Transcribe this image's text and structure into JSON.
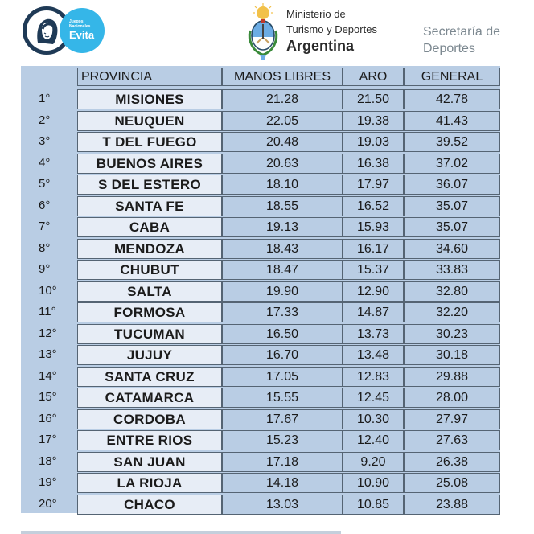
{
  "header": {
    "evita_small": "Juegos Nacionales",
    "evita_word": "Evita",
    "ministry_line1": "Ministerio de",
    "ministry_line2": "Turismo y Deportes",
    "ministry_line3": "Argentina",
    "secretaria_line1": "Secretaría de",
    "secretaria_line2": "Deportes"
  },
  "table": {
    "columns": [
      "PROVINCIA",
      "MANOS LIBRES",
      "ARO",
      "GENERAL"
    ],
    "rows": [
      {
        "rank": "1°",
        "provincia": "MISIONES",
        "manos_libres": "21.28",
        "aro": "21.50",
        "general": "42.78"
      },
      {
        "rank": "2°",
        "provincia": "NEUQUEN",
        "manos_libres": "22.05",
        "aro": "19.38",
        "general": "41.43"
      },
      {
        "rank": "3°",
        "provincia": "T DEL FUEGO",
        "manos_libres": "20.48",
        "aro": "19.03",
        "general": "39.52"
      },
      {
        "rank": "4°",
        "provincia": "BUENOS AIRES",
        "manos_libres": "20.63",
        "aro": "16.38",
        "general": "37.02"
      },
      {
        "rank": "5°",
        "provincia": "S DEL ESTERO",
        "manos_libres": "18.10",
        "aro": "17.97",
        "general": "36.07"
      },
      {
        "rank": "6°",
        "provincia": "SANTA FE",
        "manos_libres": "18.55",
        "aro": "16.52",
        "general": "35.07"
      },
      {
        "rank": "7°",
        "provincia": "CABA",
        "manos_libres": "19.13",
        "aro": "15.93",
        "general": "35.07"
      },
      {
        "rank": "8°",
        "provincia": "MENDOZA",
        "manos_libres": "18.43",
        "aro": "16.17",
        "general": "34.60"
      },
      {
        "rank": "9°",
        "provincia": "CHUBUT",
        "manos_libres": "18.47",
        "aro": "15.37",
        "general": "33.83"
      },
      {
        "rank": "10°",
        "provincia": "SALTA",
        "manos_libres": "19.90",
        "aro": "12.90",
        "general": "32.80"
      },
      {
        "rank": "11°",
        "provincia": "FORMOSA",
        "manos_libres": "17.33",
        "aro": "14.87",
        "general": "32.20"
      },
      {
        "rank": "12°",
        "provincia": "TUCUMAN",
        "manos_libres": "16.50",
        "aro": "13.73",
        "general": "30.23"
      },
      {
        "rank": "13°",
        "provincia": "JUJUY",
        "manos_libres": "16.70",
        "aro": "13.48",
        "general": "30.18"
      },
      {
        "rank": "14°",
        "provincia": "SANTA CRUZ",
        "manos_libres": "17.05",
        "aro": "12.83",
        "general": "29.88"
      },
      {
        "rank": "15°",
        "provincia": "CATAMARCA",
        "manos_libres": "15.55",
        "aro": "12.45",
        "general": "28.00"
      },
      {
        "rank": "16°",
        "provincia": "CORDOBA",
        "manos_libres": "17.67",
        "aro": "10.30",
        "general": "27.97"
      },
      {
        "rank": "17°",
        "provincia": "ENTRE RIOS",
        "manos_libres": "15.23",
        "aro": "12.40",
        "general": "27.63"
      },
      {
        "rank": "18°",
        "provincia": "SAN JUAN",
        "manos_libres": "17.18",
        "aro": "9.20",
        "general": "26.38"
      },
      {
        "rank": "19°",
        "provincia": "LA RIOJA",
        "manos_libres": "14.18",
        "aro": "10.90",
        "general": "25.08"
      },
      {
        "rank": "20°",
        "provincia": "CHACO",
        "manos_libres": "13.03",
        "aro": "10.85",
        "general": "23.88"
      }
    ]
  },
  "colors": {
    "table_background": "#b9cde4",
    "province_cell_background": "#e7edf6",
    "evita_badge": "#35b6e8",
    "evita_ring": "#1f3a56"
  },
  "icons": {
    "evita_logo": "evita-portrait-logo",
    "ministry_logo": "argentina-coat-of-arms"
  }
}
